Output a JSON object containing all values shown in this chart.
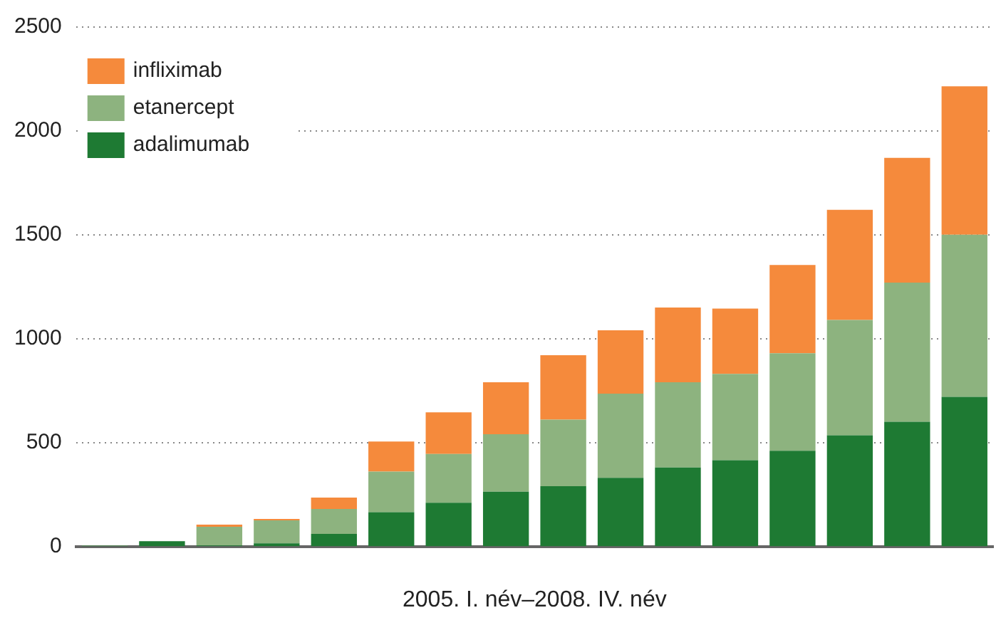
{
  "chart_data": {
    "type": "bar",
    "stacked": true,
    "xlabel": "2005. I. név–2008. IV. név",
    "categories": [
      null,
      null,
      null,
      null,
      null,
      null,
      null,
      null,
      null,
      null,
      null,
      null,
      null,
      null,
      null,
      null
    ],
    "series": [
      {
        "name": "adalimumab",
        "color": "#1e7a33",
        "values": [
          3,
          25,
          5,
          15,
          60,
          165,
          210,
          263,
          290,
          330,
          380,
          415,
          460,
          535,
          600,
          720
        ]
      },
      {
        "name": "etanercept",
        "color": "#8db37f",
        "values": [
          2,
          0,
          90,
          110,
          120,
          195,
          235,
          277,
          320,
          405,
          410,
          415,
          470,
          555,
          670,
          780
        ]
      },
      {
        "name": "infliximab",
        "color": "#f58a3c",
        "values": [
          0,
          0,
          10,
          7,
          55,
          145,
          200,
          250,
          310,
          305,
          360,
          315,
          425,
          530,
          600,
          715
        ]
      }
    ],
    "ylim": [
      0,
      2500
    ],
    "yticks": [
      0,
      500,
      1000,
      1500,
      2000,
      2500
    ],
    "grid": "y",
    "legend": "top left"
  }
}
